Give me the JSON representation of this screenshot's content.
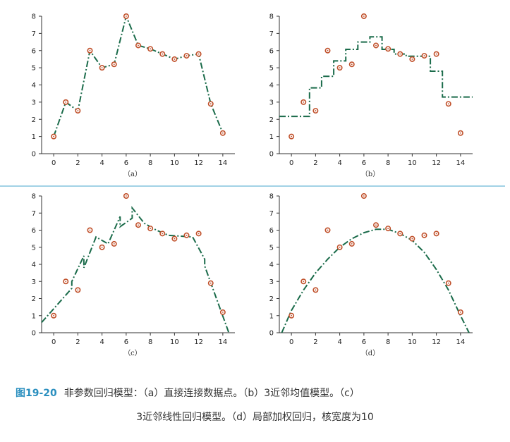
{
  "chart_data": [
    {
      "type": "line",
      "label": "（a）",
      "xlim": [
        -1,
        15
      ],
      "ylim": [
        0,
        8
      ],
      "xticks": [
        0,
        2,
        4,
        6,
        8,
        10,
        12,
        14
      ],
      "yticks": [
        0,
        1,
        2,
        3,
        4,
        5,
        6,
        7,
        8
      ],
      "points": [
        [
          0,
          1
        ],
        [
          1,
          3
        ],
        [
          2,
          2.5
        ],
        [
          3,
          6
        ],
        [
          4,
          5
        ],
        [
          5,
          5.2
        ],
        [
          6,
          8
        ],
        [
          7,
          6.3
        ],
        [
          8,
          6.1
        ],
        [
          9,
          5.8
        ],
        [
          10,
          5.5
        ],
        [
          11,
          5.7
        ],
        [
          12,
          5.8
        ],
        [
          13,
          2.9
        ],
        [
          14,
          1.2
        ]
      ],
      "curve": [
        [
          0,
          1
        ],
        [
          1,
          3
        ],
        [
          2,
          2.5
        ],
        [
          3,
          6
        ],
        [
          4,
          5
        ],
        [
          5,
          5.2
        ],
        [
          6,
          8
        ],
        [
          7,
          6.3
        ],
        [
          8,
          6.1
        ],
        [
          9,
          5.8
        ],
        [
          10,
          5.5
        ],
        [
          11,
          5.7
        ],
        [
          12,
          5.8
        ],
        [
          13,
          2.9
        ],
        [
          14,
          1.2
        ]
      ]
    },
    {
      "type": "line",
      "label": "（b）",
      "xlim": [
        -1,
        15
      ],
      "ylim": [
        0,
        8
      ],
      "xticks": [
        0,
        2,
        4,
        6,
        8,
        10,
        12,
        14
      ],
      "yticks": [
        0,
        1,
        2,
        3,
        4,
        5,
        6,
        7,
        8
      ],
      "points": [
        [
          0,
          1
        ],
        [
          1,
          3
        ],
        [
          2,
          2.5
        ],
        [
          3,
          6
        ],
        [
          4,
          5
        ],
        [
          5,
          5.2
        ],
        [
          6,
          8
        ],
        [
          7,
          6.3
        ],
        [
          8,
          6.1
        ],
        [
          9,
          5.8
        ],
        [
          10,
          5.5
        ],
        [
          11,
          5.7
        ],
        [
          12,
          5.8
        ],
        [
          13,
          2.9
        ],
        [
          14,
          1.2
        ]
      ],
      "curve": [
        [
          -1,
          2.17
        ],
        [
          1.5,
          2.17
        ],
        [
          1.5,
          3.83
        ],
        [
          2.5,
          3.83
        ],
        [
          2.5,
          4.5
        ],
        [
          3.5,
          4.5
        ],
        [
          3.5,
          5.4
        ],
        [
          4.5,
          5.4
        ],
        [
          4.5,
          6.07
        ],
        [
          5.5,
          6.07
        ],
        [
          5.5,
          6.5
        ],
        [
          6.5,
          6.5
        ],
        [
          6.5,
          6.8
        ],
        [
          7.5,
          6.8
        ],
        [
          7.5,
          6.07
        ],
        [
          8.5,
          6.07
        ],
        [
          8.5,
          5.8
        ],
        [
          9.5,
          5.8
        ],
        [
          9.5,
          5.67
        ],
        [
          11.5,
          5.67
        ],
        [
          11.5,
          4.8
        ],
        [
          12.5,
          4.8
        ],
        [
          12.5,
          3.3
        ],
        [
          15,
          3.3
        ]
      ]
    },
    {
      "type": "line",
      "label": "（c）",
      "xlim": [
        -1,
        15
      ],
      "ylim": [
        0,
        8
      ],
      "xticks": [
        0,
        2,
        4,
        6,
        8,
        10,
        12,
        14
      ],
      "yticks": [
        0,
        1,
        2,
        3,
        4,
        5,
        6,
        7,
        8
      ],
      "points": [
        [
          0,
          1
        ],
        [
          1,
          3
        ],
        [
          2,
          2.5
        ],
        [
          3,
          6
        ],
        [
          4,
          5
        ],
        [
          5,
          5.2
        ],
        [
          6,
          8
        ],
        [
          7,
          6.3
        ],
        [
          8,
          6.1
        ],
        [
          9,
          5.8
        ],
        [
          10,
          5.5
        ],
        [
          11,
          5.7
        ],
        [
          12,
          5.8
        ],
        [
          13,
          2.9
        ],
        [
          14,
          1.2
        ]
      ],
      "curve": [
        [
          -1,
          0.6
        ],
        [
          1.5,
          2.6
        ],
        [
          1.5,
          3.0
        ],
        [
          2.5,
          4.5
        ],
        [
          2.5,
          3.8
        ],
        [
          3.5,
          5.6
        ],
        [
          4.5,
          5.2
        ],
        [
          5.5,
          6.8
        ],
        [
          5.5,
          6.2
        ],
        [
          6.5,
          6.7
        ],
        [
          6.5,
          7.3
        ],
        [
          7.5,
          6.4
        ],
        [
          8.5,
          6.0
        ],
        [
          9.5,
          5.7
        ],
        [
          11.5,
          5.6
        ],
        [
          12.5,
          4.3
        ],
        [
          12.5,
          3.9
        ],
        [
          14.5,
          0
        ]
      ]
    },
    {
      "type": "line",
      "label": "（d）",
      "xlim": [
        -1,
        15
      ],
      "ylim": [
        0,
        8
      ],
      "xticks": [
        0,
        2,
        4,
        6,
        8,
        10,
        12,
        14
      ],
      "yticks": [
        0,
        1,
        2,
        3,
        4,
        5,
        6,
        7,
        8
      ],
      "points": [
        [
          0,
          1
        ],
        [
          1,
          3
        ],
        [
          2,
          2.5
        ],
        [
          3,
          6
        ],
        [
          4,
          5
        ],
        [
          5,
          5.2
        ],
        [
          6,
          8
        ],
        [
          7,
          6.3
        ],
        [
          8,
          6.1
        ],
        [
          9,
          5.8
        ],
        [
          10,
          5.5
        ],
        [
          11,
          5.7
        ],
        [
          12,
          5.8
        ],
        [
          13,
          2.9
        ],
        [
          14,
          1.2
        ]
      ],
      "curve": [
        [
          -0.8,
          0
        ],
        [
          0,
          1.3
        ],
        [
          1,
          2.5
        ],
        [
          2,
          3.5
        ],
        [
          3,
          4.3
        ],
        [
          4,
          5.0
        ],
        [
          5,
          5.5
        ],
        [
          6,
          5.85
        ],
        [
          7,
          6.05
        ],
        [
          8,
          6.05
        ],
        [
          9,
          5.8
        ],
        [
          10,
          5.4
        ],
        [
          11,
          4.7
        ],
        [
          12,
          3.7
        ],
        [
          13,
          2.5
        ],
        [
          14,
          1.0
        ],
        [
          14.7,
          0
        ]
      ]
    }
  ],
  "caption": {
    "figure_number": "图19-20",
    "line1": "非参数回归模型：（a）直接连接数据点。（b）3近邻均值模型。（c）",
    "line2": "3近邻线性回归模型。（d）局部加权回归，核宽度为10"
  },
  "colors": {
    "curve": "#1a6b4a",
    "marker": "#c0502a",
    "divider": "#6bb8d6"
  }
}
